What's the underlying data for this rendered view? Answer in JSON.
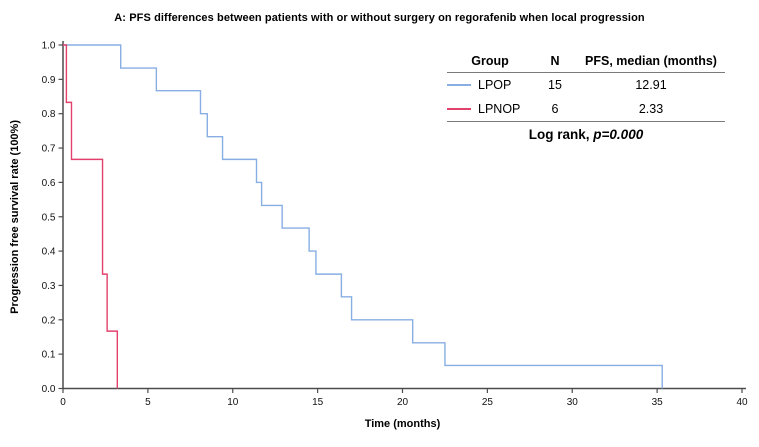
{
  "chart_data": {
    "type": "line",
    "subtype": "kaplan-meier-step",
    "title": "A: PFS differences between patients with or without surgery on regorafenib when local progression",
    "xlabel": "Time (months)",
    "ylabel": "Progression free survival rate (100%)",
    "xlim": [
      0,
      40
    ],
    "ylim": [
      0.0,
      1.0
    ],
    "xticks": [
      0,
      5,
      10,
      15,
      20,
      25,
      30,
      35,
      40
    ],
    "yticks": [
      0.0,
      0.1,
      0.2,
      0.3,
      0.4,
      0.5,
      0.6,
      0.7,
      0.8,
      0.9,
      1.0
    ],
    "grid": false,
    "legend_position": "top-right-table",
    "series": [
      {
        "name": "LPOP",
        "color": "#88aee4",
        "n": 15,
        "median_pfs_months": 12.91,
        "steps": [
          [
            0,
            1.0
          ],
          [
            3.4,
            0.933
          ],
          [
            5.5,
            0.867
          ],
          [
            8.1,
            0.8
          ],
          [
            8.5,
            0.733
          ],
          [
            9.4,
            0.667
          ],
          [
            11.4,
            0.6
          ],
          [
            11.7,
            0.533
          ],
          [
            12.91,
            0.467
          ],
          [
            14.5,
            0.4
          ],
          [
            14.9,
            0.333
          ],
          [
            16.4,
            0.267
          ],
          [
            17.0,
            0.2
          ],
          [
            20.6,
            0.133
          ],
          [
            22.5,
            0.067
          ],
          [
            35.3,
            0.0
          ]
        ]
      },
      {
        "name": "LPNOP",
        "color": "#e2416b",
        "n": 6,
        "median_pfs_months": 2.33,
        "steps": [
          [
            0,
            1.0
          ],
          [
            0.2,
            0.833
          ],
          [
            0.5,
            0.667
          ],
          [
            2.33,
            0.333
          ],
          [
            2.6,
            0.167
          ],
          [
            3.2,
            0.0
          ]
        ]
      }
    ]
  },
  "legend": {
    "headers": [
      "Group",
      "N",
      "PFS, median (months)"
    ],
    "rows": [
      {
        "group": "LPOP",
        "n": "15",
        "median": "12.91",
        "color": "#88aee4"
      },
      {
        "group": "LPNOP",
        "n": "6",
        "median": "2.33",
        "color": "#e2416b"
      }
    ],
    "footer": {
      "label": "Log rank, ",
      "p_value": "p=0.000"
    }
  },
  "colors": {
    "axis": "#4d4d4d",
    "background": "#ffffff",
    "lpop_line": "#88aee4",
    "lpnop_line": "#e2416b"
  }
}
